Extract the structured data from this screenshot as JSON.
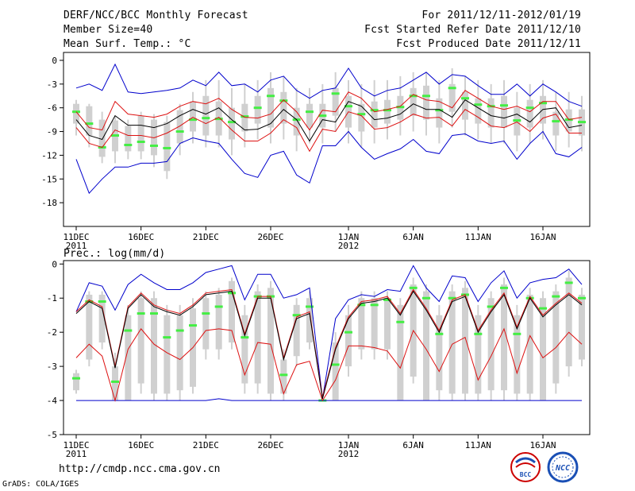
{
  "header": {
    "title": "DERF/NCC/BCC Monthly Forecast",
    "member_size": "Member Size=40",
    "variable": "Mean Surf. Temp.: °C",
    "period": "For 2011/12/11-2012/01/19",
    "refer": "Fcst Started Refer Date 2011/12/10",
    "produced": "Fcst Produced Date 2011/12/11"
  },
  "footer": {
    "url": "http://cmdp.ncc.cma.gov.cn",
    "credit": "GrADS: COLA/IGES",
    "logo1_text": "BCC",
    "logo2_text": "NCC"
  },
  "colors": {
    "box": "#d0d0d0",
    "median": "#44ee44",
    "mean": "#000000",
    "std": "#dd1111",
    "extreme": "#0000cc"
  },
  "chart_data": [
    {
      "type": "box",
      "title": "Mean Surf. Temp.: °C",
      "xlabels": [
        "11DEC",
        "16DEC",
        "21DEC",
        "26DEC",
        "1JAN",
        "6JAN",
        "11JAN",
        "16JAN"
      ],
      "xlabel_days": [
        0,
        5,
        10,
        15,
        21,
        26,
        31,
        36
      ],
      "year_labels": [
        {
          "text": "2011",
          "day": 0
        },
        {
          "text": "2012",
          "day": 21
        }
      ],
      "yticks": [
        0,
        -3,
        -6,
        -9,
        -12,
        -15,
        -18
      ],
      "ylim": [
        -21,
        1
      ],
      "days": 40,
      "series": {
        "median": [
          -6.5,
          -8,
          -11,
          -9.5,
          -10.7,
          -10.3,
          -10.8,
          -11.1,
          -9,
          -7.5,
          -7.3,
          -7.4,
          -7.8,
          -7.1,
          -6,
          -4.5,
          -5.1,
          -7.5,
          -6.5,
          -7,
          -4.2,
          -5.8,
          -6.8,
          -6.3,
          -6.3,
          -5.9,
          -4.5,
          -4.5,
          -6.3,
          -3.5,
          -4.8,
          -5.6,
          -5.8,
          -5.7,
          -7.6,
          -6,
          -5.4,
          -7.7,
          -7.5,
          -7.8
        ],
        "box_top": [
          -5.5,
          -5.8,
          -7.5,
          -7.6,
          -8.3,
          -7,
          -7.5,
          -7.8,
          -6.3,
          -5.2,
          -4.5,
          -5.2,
          -6,
          -5.5,
          -4.5,
          -3.5,
          -4,
          -6,
          -5.5,
          -5.5,
          -3.5,
          -4.5,
          -5.5,
          -5.2,
          -5,
          -4.5,
          -3.5,
          -3.2,
          -4.8,
          -3,
          -4,
          -4.8,
          -4.8,
          -4.5,
          -6,
          -5,
          -4.5,
          -6.5,
          -6.2,
          -6.2
        ],
        "box_bot": [
          -8,
          -9.5,
          -12.2,
          -11.5,
          -11.5,
          -11.5,
          -12,
          -14,
          -10.5,
          -9,
          -9.5,
          -9.5,
          -10,
          -9,
          -8,
          -8.5,
          -8,
          -9.5,
          -8.5,
          -8.5,
          -7,
          -8.5,
          -9,
          -8.5,
          -8,
          -7.5,
          -7,
          -7.5,
          -8.5,
          -6.5,
          -7.5,
          -8,
          -8.5,
          -8.5,
          -9.5,
          -8.5,
          -8,
          -9.5,
          -9,
          -9.5
        ],
        "whisk_top": [
          -5,
          -5.5,
          -6.5,
          -7,
          -7.5,
          -6.5,
          -6.8,
          -7,
          -5.5,
          -4,
          -2.5,
          -2.5,
          -3.5,
          -3,
          -2.5,
          -1.5,
          -2,
          -3.5,
          -3.5,
          -3,
          -1.5,
          -2.5,
          -3,
          -2.5,
          -2.5,
          -2,
          -1.5,
          -1.5,
          -2.5,
          -1,
          -2,
          -2.5,
          -3,
          -2.5,
          -4,
          -3,
          -2.5,
          -4,
          -4,
          -4.5
        ],
        "whisk_bot": [
          -9.5,
          -11,
          -13,
          -13,
          -12.5,
          -12.5,
          -13.5,
          -15,
          -12,
          -10.5,
          -11,
          -11,
          -12,
          -11,
          -10,
          -10.5,
          -10,
          -11.5,
          -10.5,
          -10.5,
          -9,
          -10.5,
          -11,
          -10.5,
          -10,
          -9.5,
          -9,
          -9.5,
          -10.5,
          -8.5,
          -9.5,
          -10,
          -10.5,
          -10.5,
          -11.5,
          -10.5,
          -10,
          -11.5,
          -11,
          -11.5
        ],
        "mean": [
          -7.5,
          -9.5,
          -10,
          -7,
          -8.2,
          -8.2,
          -8.5,
          -8,
          -7,
          -6.2,
          -6.8,
          -6,
          -7.5,
          -8.8,
          -8.7,
          -8,
          -6.2,
          -7.5,
          -10.2,
          -7.5,
          -7.8,
          -5.2,
          -5.8,
          -7.5,
          -7.3,
          -6.8,
          -5.5,
          -6.2,
          -6.2,
          -7.2,
          -5,
          -6,
          -7,
          -7.3,
          -6.8,
          -7.8,
          -6.2,
          -6,
          -8.5,
          -8.2
        ],
        "std_hi": [
          -6.5,
          -8.5,
          -8.8,
          -5.2,
          -6.8,
          -7,
          -7.2,
          -6.8,
          -5.8,
          -5.2,
          -5.5,
          -4.8,
          -6.2,
          -7.2,
          -7.3,
          -6.8,
          -5,
          -6.5,
          -8.8,
          -6.3,
          -6.5,
          -4,
          -4.8,
          -6.5,
          -6.2,
          -5.8,
          -4.3,
          -5,
          -5.2,
          -6,
          -3.8,
          -4.8,
          -5.8,
          -6.2,
          -5.8,
          -6.5,
          -5.2,
          -5.2,
          -7.5,
          -7.2
        ],
        "std_lo": [
          -8.5,
          -10.5,
          -11,
          -8.8,
          -9.5,
          -9.5,
          -9.8,
          -9.2,
          -8.3,
          -7.2,
          -8,
          -7.2,
          -8.8,
          -10.2,
          -10.2,
          -9.2,
          -7.5,
          -8.5,
          -11.5,
          -8.7,
          -9,
          -6.5,
          -7,
          -8.7,
          -8.5,
          -7.8,
          -6.8,
          -7.3,
          -7.2,
          -8.3,
          -6.2,
          -7.2,
          -8.3,
          -8.5,
          -7.8,
          -9,
          -7.3,
          -6.8,
          -9.2,
          -9.2
        ],
        "max": [
          -3.5,
          -3,
          -3.8,
          -0.5,
          -4,
          -4.2,
          -4,
          -3.8,
          -3.5,
          -2.5,
          -3.2,
          -1.5,
          -3.2,
          -3,
          -4,
          -2.5,
          -2,
          -3.8,
          -4.8,
          -3.8,
          -3.5,
          -1,
          -3.5,
          -4.5,
          -3.8,
          -3.5,
          -2.5,
          -1.5,
          -3,
          -1.8,
          -2,
          -3.2,
          -4.3,
          -4.3,
          -3,
          -4.5,
          -3,
          -4,
          -5.2,
          -5.8
        ],
        "min": [
          -12.5,
          -16.8,
          -15,
          -13.5,
          -13.5,
          -13,
          -13,
          -12.8,
          -10.5,
          -9.8,
          -10.2,
          -10.5,
          -12.5,
          -14.3,
          -14.8,
          -12,
          -11.5,
          -14.5,
          -15.5,
          -10.8,
          -10.8,
          -9,
          -11,
          -12.5,
          -11.8,
          -11.2,
          -10,
          -11.5,
          -11.8,
          -9.5,
          -9.3,
          -10.2,
          -10.5,
          -10.2,
          -12.5,
          -10.5,
          -9,
          -11.8,
          -12.2,
          -11
        ]
      }
    },
    {
      "type": "box",
      "title": "Prec.: log(mm/d)",
      "xlabels": [
        "11DEC",
        "16DEC",
        "21DEC",
        "26DEC",
        "1JAN",
        "6JAN",
        "11JAN",
        "16JAN"
      ],
      "xlabel_days": [
        0,
        5,
        10,
        15,
        21,
        26,
        31,
        36
      ],
      "year_labels": [
        {
          "text": "2011",
          "day": 0
        },
        {
          "text": "2012",
          "day": 21
        }
      ],
      "yticks": [
        0,
        -1,
        -2,
        -3,
        -4,
        -5
      ],
      "ylim": [
        -5,
        0.1
      ],
      "days": 40,
      "series": {
        "median": [
          -3.35,
          -1.1,
          -1.1,
          -3.45,
          -1.95,
          -1.45,
          -1.45,
          -2.15,
          -1.95,
          -1.8,
          -1.45,
          -1.25,
          -0.85,
          -2.15,
          -0.95,
          -0.95,
          -3.25,
          -1.5,
          -1.25,
          -4,
          -2.95,
          -2,
          -1.2,
          -1.2,
          -1.05,
          -1.7,
          -0.7,
          -1.0,
          -2.05,
          -1.0,
          -0.9,
          -2.05,
          -1.25,
          -0.7,
          -2.05,
          -1.0,
          -1.3,
          -0.95,
          -0.55,
          -1.0
        ],
        "box_top": [
          -3.2,
          -0.9,
          -0.9,
          -3.0,
          -1.5,
          -1.0,
          -1.0,
          -1.5,
          -1.5,
          -1.3,
          -1.0,
          -0.9,
          -0.5,
          -1.5,
          -0.8,
          -0.7,
          -2.8,
          -1.2,
          -1.0,
          -4,
          -2.3,
          -1.5,
          -1.0,
          -1.0,
          -1.0,
          -1.2,
          -0.6,
          -0.8,
          -1.5,
          -0.8,
          -0.7,
          -1.5,
          -1.0,
          -0.6,
          -1.5,
          -0.9,
          -1.0,
          -0.8,
          -0.4,
          -0.9
        ],
        "box_bot": [
          -3.7,
          -2.8,
          -2.3,
          -4.0,
          -4.0,
          -3.5,
          -3.8,
          -3.8,
          -3.7,
          -3.6,
          -2.5,
          -2.5,
          -2.3,
          -3.5,
          -3.5,
          -3.8,
          -3.8,
          -2.7,
          -2.3,
          -4,
          -4.0,
          -3.0,
          -2.5,
          -2.5,
          -2.5,
          -4.0,
          -3.3,
          -4.0,
          -3.7,
          -3.8,
          -3.8,
          -3.8,
          -3.7,
          -3.7,
          -3.8,
          -3.8,
          -4.0,
          -3.5,
          -3.0,
          -2.8
        ],
        "whisk_top": [
          -3.1,
          -0.8,
          -0.8,
          -2.6,
          -1.2,
          -0.8,
          -0.8,
          -1.2,
          -1.2,
          -1.0,
          -0.8,
          -0.7,
          -0.4,
          -1.2,
          -0.6,
          -0.5,
          -2.5,
          -1.0,
          -0.8,
          -4,
          -2.0,
          -1.2,
          -0.8,
          -0.8,
          -0.8,
          -1.0,
          -0.4,
          -0.6,
          -1.2,
          -0.6,
          -0.5,
          -1.2,
          -0.8,
          -0.4,
          -1.2,
          -0.7,
          -0.8,
          -0.6,
          -0.2,
          -0.7
        ],
        "whisk_bot": [
          -3.8,
          -3.0,
          -2.5,
          -4.0,
          -4.0,
          -3.8,
          -4.0,
          -4.0,
          -4.0,
          -3.8,
          -2.8,
          -2.8,
          -2.5,
          -3.8,
          -3.8,
          -4.0,
          -4.0,
          -3.0,
          -2.5,
          -4,
          -4.0,
          -3.3,
          -2.8,
          -2.8,
          -2.8,
          -4.0,
          -3.5,
          -4.0,
          -4.0,
          -4.0,
          -4.0,
          -4.0,
          -4.0,
          -4.0,
          -4.0,
          -4.0,
          -4.0,
          -3.8,
          -3.3,
          -3.0
        ],
        "mean": [
          -1.45,
          -1.1,
          -1.3,
          -3.05,
          -1.3,
          -0.9,
          -1.25,
          -1.4,
          -1.5,
          -1.25,
          -0.9,
          -0.85,
          -0.8,
          -2.1,
          -1.0,
          -1.0,
          -2.8,
          -1.6,
          -1.45,
          -3.95,
          -2.5,
          -1.6,
          -1.15,
          -1.1,
          -1.0,
          -1.5,
          -0.8,
          -1.35,
          -2.0,
          -1.1,
          -0.95,
          -2.0,
          -1.4,
          -0.9,
          -1.9,
          -1.0,
          -1.55,
          -1.2,
          -0.9,
          -1.2
        ],
        "std_hi": [
          -1.4,
          -1.05,
          -1.25,
          -3.0,
          -1.25,
          -0.85,
          -1.2,
          -1.35,
          -1.45,
          -1.2,
          -0.85,
          -0.8,
          -0.75,
          -2.05,
          -0.95,
          -0.95,
          -2.75,
          -1.55,
          -1.4,
          -3.9,
          -2.45,
          -1.55,
          -1.1,
          -1.05,
          -0.95,
          -1.45,
          -0.75,
          -1.3,
          -1.95,
          -1.05,
          -0.9,
          -1.95,
          -1.35,
          -0.85,
          -1.85,
          -0.95,
          -1.5,
          -1.15,
          -0.85,
          -1.15
        ],
        "std_lo": [
          -2.75,
          -2.35,
          -2.7,
          -4.0,
          -2.5,
          -1.9,
          -2.35,
          -2.6,
          -2.8,
          -2.45,
          -1.95,
          -1.9,
          -1.95,
          -3.25,
          -2.3,
          -2.35,
          -3.8,
          -2.95,
          -2.85,
          -4.0,
          -3.4,
          -2.4,
          -2.4,
          -2.45,
          -2.55,
          -3.05,
          -1.95,
          -2.5,
          -3.15,
          -2.35,
          -2.15,
          -3.4,
          -2.7,
          -1.9,
          -3.2,
          -2.1,
          -2.75,
          -2.45,
          -2.0,
          -2.35
        ],
        "max": [
          -1.4,
          -0.55,
          -0.65,
          -1.35,
          -0.6,
          -0.3,
          -0.55,
          -0.75,
          -0.75,
          -0.55,
          -0.25,
          -0.15,
          -0.05,
          -1.05,
          -0.3,
          -0.3,
          -1.0,
          -0.9,
          -0.7,
          -3.95,
          -1.6,
          -1.05,
          -0.9,
          -0.95,
          -0.75,
          -0.8,
          -0.05,
          -0.7,
          -1.1,
          -0.35,
          -0.4,
          -1.1,
          -0.55,
          -0.2,
          -1.0,
          -0.55,
          -0.45,
          -0.4,
          -0.15,
          -0.6
        ],
        "min": [
          -4,
          -4,
          -4,
          -4,
          -4,
          -4,
          -4,
          -4,
          -4,
          -4,
          -4,
          -3.95,
          -4,
          -4,
          -4,
          -4,
          -4,
          -4,
          -4,
          -4,
          -4,
          -4,
          -4,
          -4,
          -4,
          -4,
          -4,
          -4,
          -4,
          -4,
          -4,
          -4,
          -4,
          -4,
          -4,
          -4,
          -4,
          -4,
          -4,
          -4
        ]
      }
    }
  ]
}
